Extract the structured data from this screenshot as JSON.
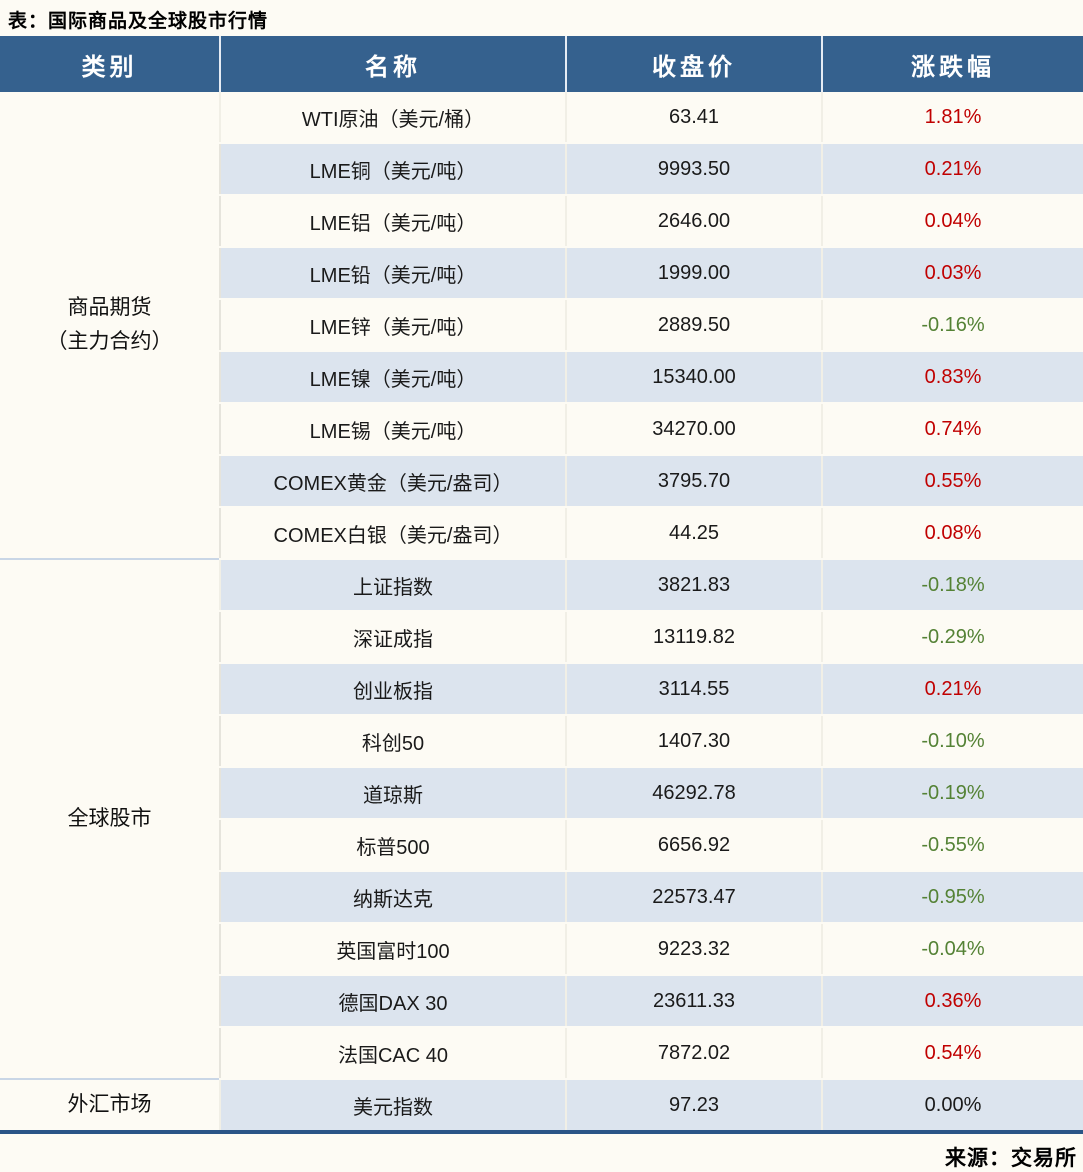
{
  "title": "表：国际商品及全球股市行情",
  "source": "来源：交易所",
  "colors": {
    "header_bg": "#35618e",
    "stripe": "#dce4ee",
    "page_bg": "#fdfbf4",
    "up": "#c00000",
    "down": "#548235",
    "flat": "#1a1a1a",
    "section_divider": "#c9d6e6",
    "bottom_border": "#2a5587"
  },
  "table": {
    "headers": [
      "类别",
      "名称",
      "收盘价",
      "涨跌幅"
    ],
    "sections": [
      {
        "category_lines": [
          "商品期货",
          "（主力合约）"
        ],
        "rows": [
          {
            "name": "WTI原油（美元/桶）",
            "close": "63.41",
            "change": "1.81%",
            "direction": "up"
          },
          {
            "name": "LME铜（美元/吨）",
            "close": "9993.50",
            "change": "0.21%",
            "direction": "up"
          },
          {
            "name": "LME铝（美元/吨）",
            "close": "2646.00",
            "change": "0.04%",
            "direction": "up"
          },
          {
            "name": "LME铅（美元/吨）",
            "close": "1999.00",
            "change": "0.03%",
            "direction": "up"
          },
          {
            "name": "LME锌（美元/吨）",
            "close": "2889.50",
            "change": "-0.16%",
            "direction": "down"
          },
          {
            "name": "LME镍（美元/吨）",
            "close": "15340.00",
            "change": "0.83%",
            "direction": "up"
          },
          {
            "name": "LME锡（美元/吨）",
            "close": "34270.00",
            "change": "0.74%",
            "direction": "up"
          },
          {
            "name": "COMEX黄金（美元/盎司）",
            "close": "3795.70",
            "change": "0.55%",
            "direction": "up"
          },
          {
            "name": "COMEX白银（美元/盎司）",
            "close": "44.25",
            "change": "0.08%",
            "direction": "up"
          }
        ]
      },
      {
        "category_lines": [
          "全球股市"
        ],
        "rows": [
          {
            "name": "上证指数",
            "close": "3821.83",
            "change": "-0.18%",
            "direction": "down"
          },
          {
            "name": "深证成指",
            "close": "13119.82",
            "change": "-0.29%",
            "direction": "down"
          },
          {
            "name": "创业板指",
            "close": "3114.55",
            "change": "0.21%",
            "direction": "up"
          },
          {
            "name": "科创50",
            "close": "1407.30",
            "change": "-0.10%",
            "direction": "down"
          },
          {
            "name": "道琼斯",
            "close": "46292.78",
            "change": "-0.19%",
            "direction": "down"
          },
          {
            "name": "标普500",
            "close": "6656.92",
            "change": "-0.55%",
            "direction": "down"
          },
          {
            "name": "纳斯达克",
            "close": "22573.47",
            "change": "-0.95%",
            "direction": "down"
          },
          {
            "name": "英国富时100",
            "close": "9223.32",
            "change": "-0.04%",
            "direction": "down"
          },
          {
            "name": "德国DAX 30",
            "close": "23611.33",
            "change": "0.36%",
            "direction": "up"
          },
          {
            "name": "法国CAC 40",
            "close": "7872.02",
            "change": "0.54%",
            "direction": "up"
          }
        ]
      },
      {
        "category_lines": [
          "外汇市场"
        ],
        "rows": [
          {
            "name": "美元指数",
            "close": "97.23",
            "change": "0.00%",
            "direction": "flat"
          }
        ]
      }
    ]
  }
}
